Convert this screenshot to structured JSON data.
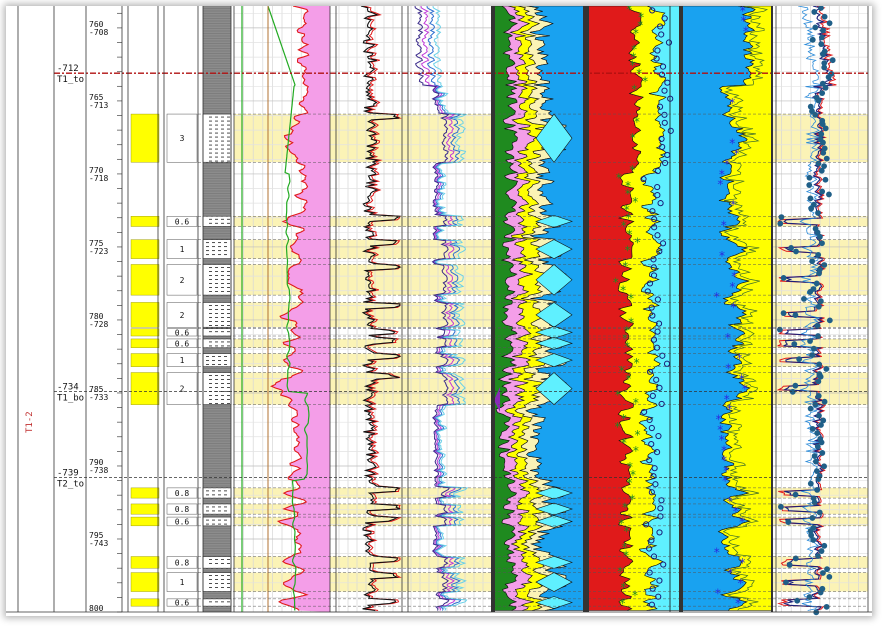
{
  "chart_data": {
    "type": "well-log",
    "depth_range": [
      758.5,
      800
    ],
    "md_labels": [
      {
        "md": 760,
        "tvd": "-708",
        "md_text": "760"
      },
      {
        "md": 765,
        "tvd": "-713",
        "md_text": "765"
      },
      {
        "md": 770,
        "tvd": "-718",
        "md_text": "770"
      },
      {
        "md": 775,
        "tvd": "-723",
        "md_text": "775"
      },
      {
        "md": 780,
        "tvd": "-728",
        "md_text": "780"
      },
      {
        "md": 785,
        "tvd": "-733",
        "md_text": "785"
      },
      {
        "md": 790,
        "tvd": "-738",
        "md_text": "790"
      },
      {
        "md": 795,
        "tvd": "-743",
        "md_text": "795"
      },
      {
        "md": 800,
        "tvd": "",
        "md_text": "800"
      }
    ],
    "tops": [
      {
        "md": 763.1,
        "name": "T1_to",
        "tvd": "-712",
        "line": "red"
      },
      {
        "md": 784.9,
        "name": "T1_bo",
        "tvd": "-734",
        "line": "black"
      },
      {
        "md": 790.8,
        "name": "T2_to",
        "tvd": "-739",
        "line": "black"
      }
    ],
    "zone_label": "T1-2",
    "sand_intervals": [
      {
        "top": 765.9,
        "base": 769.2,
        "thickness": "3"
      },
      {
        "top": 772.9,
        "base": 773.6,
        "thickness": "0.6"
      },
      {
        "top": 774.5,
        "base": 775.8,
        "thickness": "1"
      },
      {
        "top": 776.2,
        "base": 778.3,
        "thickness": "2"
      },
      {
        "top": 778.8,
        "base": 780.5,
        "thickness": "2"
      },
      {
        "top": 780.6,
        "base": 781.1,
        "thickness": "0.6"
      },
      {
        "top": 781.3,
        "base": 781.9,
        "thickness": "0.6"
      },
      {
        "top": 782.3,
        "base": 783.2,
        "thickness": "1"
      },
      {
        "top": 783.6,
        "base": 785.8,
        "thickness": "2"
      },
      {
        "top": 791.5,
        "base": 792.2,
        "thickness": "0.8"
      },
      {
        "top": 792.6,
        "base": 793.3,
        "thickness": "0.8"
      },
      {
        "top": 793.5,
        "base": 794.1,
        "thickness": "0.6"
      },
      {
        "top": 796.2,
        "base": 797.0,
        "thickness": "0.8"
      },
      {
        "top": 797.3,
        "base": 798.6,
        "thickness": "1"
      },
      {
        "top": 799.1,
        "base": 799.6,
        "thickness": "0.6"
      }
    ],
    "colors": {
      "sand": "#ffff00",
      "highlight": "#fbf3b6",
      "shale": "#8c8c8c",
      "pink_fill": "#f49ee8",
      "green_curve": "#22aa22",
      "red_curve": "#e01a1a",
      "blue_fill": "#19a2f0",
      "cyan_fill": "#5ff0ff",
      "dark_green": "#1f8a1f",
      "purple_curve": "#7a2aa8",
      "navy_curve": "#1a1f7a",
      "scatter_point": "#1f5f88",
      "star_point": "#2a2ae0"
    }
  }
}
